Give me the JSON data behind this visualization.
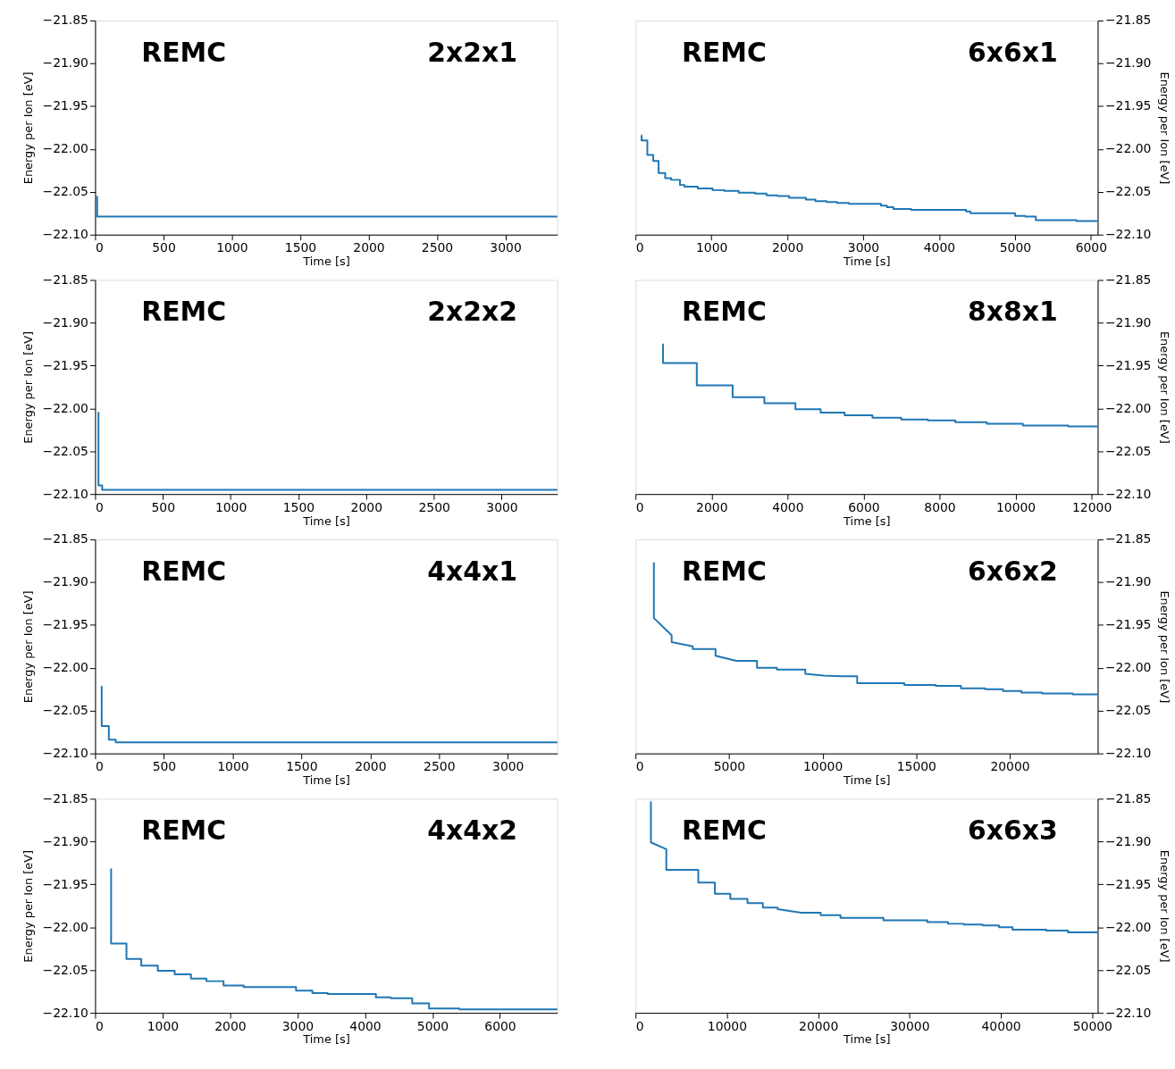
{
  "chart_data": [
    {
      "type": "line",
      "annotations": [
        "REMC",
        "2x2x1"
      ],
      "xlabel": "Time [s]",
      "ylabel": "Energy per Ion [eV]",
      "xlim": [
        0,
        3380
      ],
      "xticks": [
        0,
        500,
        1000,
        1500,
        2000,
        2500,
        3000
      ],
      "ylim": [
        -22.1,
        -21.85
      ],
      "yticks": [
        {
          "value": -22.1,
          "label": "−22.10"
        },
        {
          "value": -22.05,
          "label": "−22.05"
        },
        {
          "value": -22.0,
          "label": "−22.00"
        },
        {
          "value": -21.95,
          "label": "−21.95"
        },
        {
          "value": -21.9,
          "label": "−21.90"
        },
        {
          "value": -21.85,
          "label": "−21.85"
        }
      ],
      "grid": false,
      "series": [
        {
          "color": "#1f77b4",
          "x": [
            15,
            15,
            3380
          ],
          "values": [
            -22.055,
            -22.079,
            -22.079
          ]
        }
      ]
    },
    {
      "type": "step",
      "annotations": [
        "REMC",
        "6x6x1"
      ],
      "xlabel": "Time [s]",
      "y2label": "Energy per Ion [eV]",
      "xlim": [
        0,
        6090
      ],
      "xticks": [
        0,
        1000,
        2000,
        3000,
        4000,
        5000,
        6000
      ],
      "y2lim": [
        -22.1,
        -21.85
      ],
      "y2ticks": [
        {
          "value": -22.1,
          "label": "−22.10"
        },
        {
          "value": -22.05,
          "label": "−22.05"
        },
        {
          "value": -22.0,
          "label": "−22.00"
        },
        {
          "value": -21.95,
          "label": "−21.95"
        },
        {
          "value": -21.9,
          "label": "−21.90"
        },
        {
          "value": -21.85,
          "label": "−21.85"
        }
      ],
      "grid": false,
      "series": [
        {
          "color": "#1f77b4",
          "axis": "y2",
          "x": [
            78,
            80,
            156,
            234,
            305,
            391,
            469,
            586,
            645,
            820,
            1016,
            1172,
            1360,
            1575,
            1727,
            1875,
            2024,
            2246,
            2371,
            2520,
            2656,
            2813,
            3235,
            3313,
            3399,
            3633,
            4356,
            4415,
            5001,
            5137,
            5275,
            5810,
            6090
          ],
          "values": [
            -21.984,
            -21.99,
            -22.007,
            -22.014,
            -22.028,
            -22.034,
            -22.036,
            -22.042,
            -22.044,
            -22.046,
            -22.048,
            -22.049,
            -22.051,
            -22.052,
            -22.054,
            -22.055,
            -22.057,
            -22.059,
            -22.061,
            -22.062,
            -22.063,
            -22.064,
            -22.066,
            -22.068,
            -22.07,
            -22.071,
            -22.073,
            -22.075,
            -22.078,
            -22.079,
            -22.083,
            -22.084,
            -22.084
          ]
        }
      ]
    },
    {
      "type": "step",
      "annotations": [
        "REMC",
        "2x2x2"
      ],
      "xlabel": "Time [s]",
      "ylabel": "Energy per Ion [eV]",
      "xlim": [
        0,
        3410
      ],
      "xticks": [
        0,
        500,
        1000,
        1500,
        2000,
        2500,
        3000
      ],
      "ylim": [
        -22.1,
        -21.85
      ],
      "yticks": [
        {
          "value": -22.1,
          "label": "−22.10"
        },
        {
          "value": -22.05,
          "label": "−22.05"
        },
        {
          "value": -22.0,
          "label": "−22.00"
        },
        {
          "value": -21.95,
          "label": "−21.95"
        },
        {
          "value": -21.9,
          "label": "−21.90"
        },
        {
          "value": -21.85,
          "label": "−21.85"
        }
      ],
      "grid": false,
      "series": [
        {
          "color": "#1f77b4",
          "x": [
            20,
            25,
            52,
            3410
          ],
          "values": [
            -22.005,
            -22.09,
            -22.095,
            -22.095
          ]
        }
      ]
    },
    {
      "type": "step",
      "annotations": [
        "REMC",
        "8x8x1"
      ],
      "xlabel": "Time [s]",
      "y2label": "Energy per Ion [eV]",
      "xlim": [
        0,
        12160
      ],
      "xticks": [
        0,
        2000,
        4000,
        6000,
        8000,
        10000,
        12000
      ],
      "y2lim": [
        -22.1,
        -21.85
      ],
      "y2ticks": [
        {
          "value": -22.1,
          "label": "−22.10"
        },
        {
          "value": -22.05,
          "label": "−22.05"
        },
        {
          "value": -22.0,
          "label": "−22.00"
        },
        {
          "value": -21.95,
          "label": "−21.95"
        },
        {
          "value": -21.9,
          "label": "−21.90"
        },
        {
          "value": -21.85,
          "label": "−21.85"
        }
      ],
      "grid": false,
      "series": [
        {
          "color": "#1f77b4",
          "axis": "y2",
          "x": [
            720,
            725,
            1613,
            2556,
            3390,
            4208,
            4871,
            5502,
            6234,
            6990,
            7692,
            8416,
            9243,
            10193,
            11386,
            12160
          ],
          "values": [
            -21.925,
            -21.947,
            -21.973,
            -21.987,
            -21.994,
            -22.001,
            -22.005,
            -22.008,
            -22.011,
            -22.013,
            -22.014,
            -22.016,
            -22.018,
            -22.02,
            -22.021,
            -22.021
          ]
        }
      ]
    },
    {
      "type": "step",
      "annotations": [
        "REMC",
        "4x4x1"
      ],
      "xlabel": "Time [s]",
      "ylabel": "Energy per Ion [eV]",
      "xlim": [
        0,
        3360
      ],
      "xticks": [
        0,
        500,
        1000,
        1500,
        2000,
        2500,
        3000
      ],
      "ylim": [
        -22.1,
        -21.85
      ],
      "yticks": [
        {
          "value": -22.1,
          "label": "−22.10"
        },
        {
          "value": -22.05,
          "label": "−22.05"
        },
        {
          "value": -22.0,
          "label": "−22.00"
        },
        {
          "value": -21.95,
          "label": "−21.95"
        },
        {
          "value": -21.9,
          "label": "−21.90"
        },
        {
          "value": -21.85,
          "label": "−21.85"
        }
      ],
      "grid": false,
      "series": [
        {
          "color": "#1f77b4",
          "x": [
            46,
            48,
            100,
            150,
            3360
          ],
          "values": [
            -22.022,
            -22.068,
            -22.084,
            -22.087,
            -22.087
          ]
        }
      ]
    },
    {
      "type": "line",
      "annotations": [
        "REMC",
        "6x6x2"
      ],
      "xlabel": "Time [s]",
      "y2label": "Energy per Ion [eV]",
      "xlim": [
        0,
        24700
      ],
      "xticks": [
        0,
        5000,
        10000,
        15000,
        20000
      ],
      "y2lim": [
        -22.1,
        -21.85
      ],
      "y2ticks": [
        {
          "value": -22.1,
          "label": "−22.10"
        },
        {
          "value": -22.05,
          "label": "−22.05"
        },
        {
          "value": -22.0,
          "label": "−22.00"
        },
        {
          "value": -21.95,
          "label": "−21.95"
        },
        {
          "value": -21.9,
          "label": "−21.90"
        },
        {
          "value": -21.85,
          "label": "−21.85"
        }
      ],
      "grid": false,
      "series": [
        {
          "color": "#1f77b4",
          "axis": "y2",
          "x": [
            982,
            982,
            1932,
            1932,
            3057,
            3057,
            4277,
            4277,
            5386,
            6494,
            6494,
            7556,
            7556,
            9076,
            9076,
            10074,
            11009,
            11848,
            11848,
            14367,
            14367,
            16046,
            16046,
            17392,
            17392,
            18691,
            18691,
            19642,
            19642,
            20624,
            20624,
            21732,
            21732,
            23364,
            23364,
            24700
          ],
          "values": [
            -21.877,
            -21.942,
            -21.962,
            -21.97,
            -21.975,
            -21.978,
            -21.978,
            -21.986,
            -21.992,
            -21.992,
            -22.0,
            -22.0,
            -22.002,
            -22.002,
            -22.007,
            -22.009,
            -22.01,
            -22.01,
            -22.018,
            -22.018,
            -22.02,
            -22.02,
            -22.021,
            -22.021,
            -22.024,
            -22.024,
            -22.025,
            -22.025,
            -22.027,
            -22.027,
            -22.029,
            -22.029,
            -22.03,
            -22.03,
            -22.031,
            -22.031
          ]
        }
      ]
    },
    {
      "type": "step",
      "annotations": [
        "REMC",
        "4x4x2"
      ],
      "xlabel": "Time [s]",
      "ylabel": "Energy per Ion [eV]",
      "xlim": [
        0,
        6850
      ],
      "xticks": [
        0,
        1000,
        2000,
        3000,
        4000,
        5000,
        6000
      ],
      "ylim": [
        -22.1,
        -21.85
      ],
      "yticks": [
        {
          "value": -22.1,
          "label": "−22.10"
        },
        {
          "value": -22.05,
          "label": "−22.05"
        },
        {
          "value": -22.0,
          "label": "−22.00"
        },
        {
          "value": -21.95,
          "label": "−21.95"
        },
        {
          "value": -21.9,
          "label": "−21.90"
        },
        {
          "value": -21.85,
          "label": "−21.85"
        }
      ],
      "grid": false,
      "series": [
        {
          "color": "#1f77b4",
          "x": [
            235,
            237,
            465,
            684,
            930,
            1180,
            1421,
            1649,
            1904,
            2202,
            2978,
            3220,
            3447,
            4162,
            4382,
            4700,
            4950,
            5400,
            6850
          ],
          "values": [
            -21.932,
            -22.019,
            -22.037,
            -22.045,
            -22.051,
            -22.055,
            -22.06,
            -22.063,
            -22.068,
            -22.07,
            -22.074,
            -22.077,
            -22.078,
            -22.082,
            -22.083,
            -22.089,
            -22.095,
            -22.096,
            -22.096
          ]
        }
      ]
    },
    {
      "type": "line",
      "annotations": [
        "REMC",
        "6x6x3"
      ],
      "xlabel": "Time [s]",
      "y2label": "Energy per Ion [eV]",
      "xlim": [
        0,
        50600
      ],
      "xticks": [
        0,
        10000,
        20000,
        30000,
        40000,
        50000
      ],
      "y2lim": [
        -22.1,
        -21.85
      ],
      "y2ticks": [
        {
          "value": -22.1,
          "label": "−22.10"
        },
        {
          "value": -22.05,
          "label": "−22.05"
        },
        {
          "value": -22.0,
          "label": "−22.00"
        },
        {
          "value": -21.95,
          "label": "−21.95"
        },
        {
          "value": -21.9,
          "label": "−21.90"
        },
        {
          "value": -21.85,
          "label": "−21.85"
        }
      ],
      "grid": false,
      "series": [
        {
          "color": "#1f77b4",
          "axis": "y2",
          "x": [
            1686,
            1686,
            3373,
            3373,
            6875,
            6875,
            8691,
            8691,
            10378,
            10378,
            12259,
            12259,
            13945,
            13945,
            15566,
            15566,
            18161,
            20269,
            20269,
            22442,
            22442,
            27144,
            27144,
            31944,
            31944,
            34214,
            34214,
            35932,
            35932,
            38008,
            38008,
            39792,
            39792,
            41284,
            41284,
            44981,
            44981,
            47348,
            47348,
            50600
          ],
          "values": [
            -21.853,
            -21.901,
            -21.909,
            -21.933,
            -21.933,
            -21.948,
            -21.948,
            -21.961,
            -21.961,
            -21.967,
            -21.967,
            -21.972,
            -21.972,
            -21.977,
            -21.977,
            -21.979,
            -21.983,
            -21.983,
            -21.986,
            -21.986,
            -21.989,
            -21.989,
            -21.992,
            -21.992,
            -21.994,
            -21.994,
            -21.996,
            -21.996,
            -21.997,
            -21.997,
            -21.998,
            -21.998,
            -22.0,
            -22.0,
            -22.003,
            -22.003,
            -22.004,
            -22.004,
            -22.006,
            -22.006
          ]
        }
      ]
    }
  ]
}
